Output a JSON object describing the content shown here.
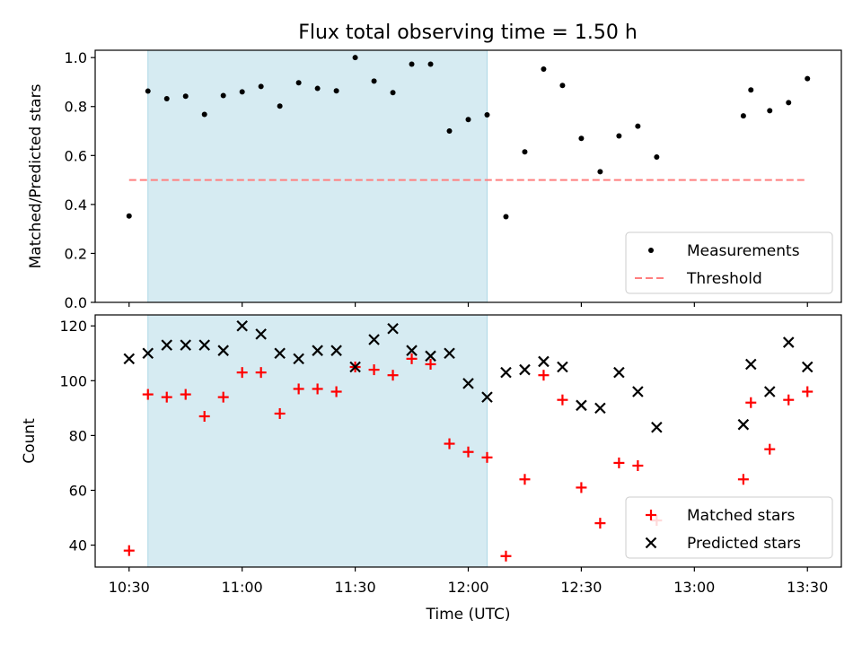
{
  "title": "Flux total observing time = 1.50 h",
  "colors": {
    "shade": "#add8e6",
    "measurement": "#000000",
    "threshold": "#ff7f7f",
    "matched": "#ff0000",
    "predicted": "#000000"
  },
  "chart_data": [
    {
      "type": "scatter",
      "panel": "top",
      "title": "Flux total observing time = 1.50 h",
      "xlabel": "",
      "ylabel": "Matched/Predicted stars",
      "ylim": [
        0,
        1.03
      ],
      "yticks": [
        0.0,
        0.2,
        0.4,
        0.6,
        0.8,
        1.0
      ],
      "ytick_labels": [
        "0.0",
        "0.2",
        "0.4",
        "0.6",
        "0.8",
        "1.0"
      ],
      "xlim": [
        "10:21",
        "13:39"
      ],
      "shaded_span": [
        "10:35",
        "12:05"
      ],
      "legend_location": "lower right",
      "series": [
        {
          "name": "Measurements",
          "marker": "dot",
          "x": [
            "10:30",
            "10:35",
            "10:40",
            "10:45",
            "10:50",
            "10:55",
            "11:00",
            "11:05",
            "11:10",
            "11:15",
            "11:20",
            "11:25",
            "11:30",
            "11:35",
            "11:40",
            "11:45",
            "11:50",
            "11:55",
            "12:00",
            "12:05",
            "12:10",
            "12:15",
            "12:20",
            "12:25",
            "12:30",
            "12:35",
            "12:40",
            "12:45",
            "12:50",
            "13:13",
            "13:15",
            "13:20",
            "13:25",
            "13:30"
          ],
          "y": [
            0.353,
            0.863,
            0.832,
            0.842,
            0.768,
            0.845,
            0.86,
            0.882,
            0.802,
            0.897,
            0.874,
            0.864,
            1.0,
            0.904,
            0.857,
            0.973,
            0.973,
            0.7,
            0.747,
            0.766,
            0.35,
            0.615,
            0.953,
            0.886,
            0.67,
            0.534,
            0.68,
            0.72,
            0.594,
            0.762,
            0.868,
            0.783,
            0.816,
            0.914
          ]
        },
        {
          "name": "Threshold",
          "line": "dashed",
          "x": [
            "10:30",
            "13:30"
          ],
          "y": [
            0.5,
            0.5
          ]
        }
      ]
    },
    {
      "type": "scatter",
      "panel": "bottom",
      "xlabel": "Time (UTC)",
      "ylabel": "Count",
      "ylim": [
        32,
        124
      ],
      "yticks": [
        40,
        60,
        80,
        100,
        120
      ],
      "ytick_labels": [
        "40",
        "60",
        "80",
        "100",
        "120"
      ],
      "xlim": [
        "10:21",
        "13:39"
      ],
      "xticks": [
        "10:30",
        "11:00",
        "11:30",
        "12:00",
        "12:30",
        "13:00",
        "13:30"
      ],
      "xtick_labels": [
        "10:30",
        "11:00",
        "11:30",
        "12:00",
        "12:30",
        "13:00",
        "13:30"
      ],
      "shaded_span": [
        "10:35",
        "12:05"
      ],
      "legend_location": "lower right",
      "series": [
        {
          "name": "Matched stars",
          "marker": "plus",
          "x": [
            "10:30",
            "10:35",
            "10:40",
            "10:45",
            "10:50",
            "10:55",
            "11:00",
            "11:05",
            "11:10",
            "11:15",
            "11:20",
            "11:25",
            "11:30",
            "11:35",
            "11:40",
            "11:45",
            "11:50",
            "11:55",
            "12:00",
            "12:05",
            "12:10",
            "12:15",
            "12:20",
            "12:25",
            "12:30",
            "12:35",
            "12:40",
            "12:45",
            "12:50",
            "13:13",
            "13:15",
            "13:20",
            "13:25",
            "13:30"
          ],
          "y": [
            38,
            95,
            94,
            95,
            87,
            94,
            103,
            103,
            88,
            97,
            97,
            96,
            105,
            104,
            102,
            108,
            106,
            77,
            74,
            72,
            36,
            64,
            102,
            93,
            61,
            48,
            70,
            69,
            49,
            64,
            92,
            75,
            93,
            96
          ]
        },
        {
          "name": "Predicted stars",
          "marker": "x",
          "x": [
            "10:30",
            "10:35",
            "10:40",
            "10:45",
            "10:50",
            "10:55",
            "11:00",
            "11:05",
            "11:10",
            "11:15",
            "11:20",
            "11:25",
            "11:30",
            "11:35",
            "11:40",
            "11:45",
            "11:50",
            "11:55",
            "12:00",
            "12:05",
            "12:10",
            "12:15",
            "12:20",
            "12:25",
            "12:30",
            "12:35",
            "12:40",
            "12:45",
            "12:50",
            "13:13",
            "13:15",
            "13:20",
            "13:25",
            "13:30"
          ],
          "y": [
            108,
            110,
            113,
            113,
            113,
            111,
            120,
            117,
            110,
            108,
            111,
            111,
            105,
            115,
            119,
            111,
            109,
            110,
            99,
            94,
            103,
            104,
            107,
            105,
            91,
            90,
            103,
            96,
            83,
            84,
            106,
            96,
            114,
            105
          ]
        }
      ]
    }
  ]
}
